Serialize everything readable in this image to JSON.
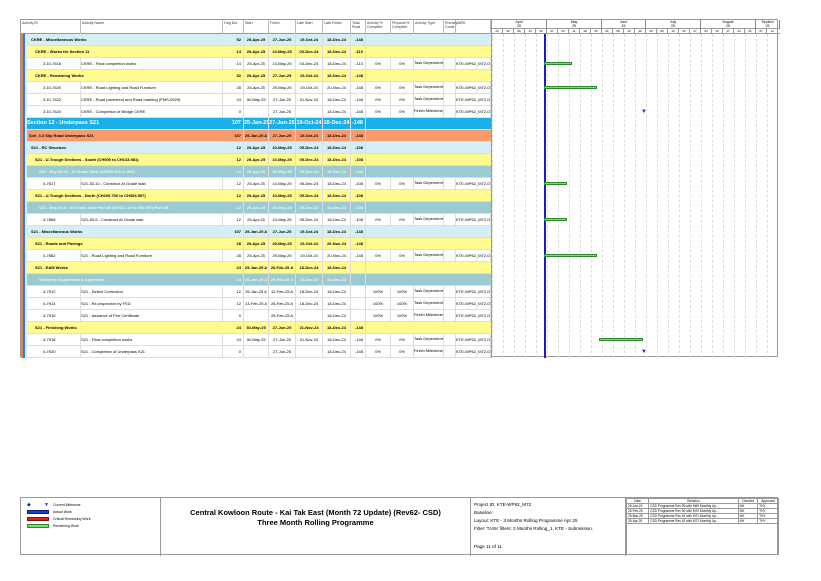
{
  "columns": [
    "Activity ID",
    "Activity Name",
    "Orig Dur",
    "Start",
    "Finish",
    "Late Start",
    "Late Finish",
    "Total Float",
    "Activity % Complete",
    "Physical % Complete",
    "Activity Type",
    "Primary Const",
    "WBS"
  ],
  "timescale": {
    "months": [
      "April",
      "May",
      "June",
      "July",
      "August",
      "Septem"
    ],
    "years": [
      "25",
      "25",
      "25",
      "25",
      "25",
      "25"
    ],
    "weeks": [
      "23",
      "30",
      "06",
      "13",
      "20",
      "27",
      "04",
      "11",
      "18",
      "25",
      "01",
      "08",
      "15",
      "22",
      "29",
      "06",
      "13",
      "20",
      "27",
      "03",
      "10",
      "17",
      "24",
      "31",
      "07",
      "14"
    ]
  },
  "rows": [
    {
      "level": "b",
      "id": "",
      "name": "CKRE - Miscellaneous Works",
      "dur": "52",
      "start": "25-Apr-25",
      "finish": "27-Jun-25",
      "ls": "19-Oct-24",
      "lf": "18-Dec-24",
      "tf": "-148"
    },
    {
      "level": "y",
      "id": "",
      "name": "CKRE - Works for Section 11",
      "dur": "14",
      "start": "25-Apr-25",
      "finish": "13-May-25",
      "ls": "03-Dec-24",
      "lf": "18-Dec-24",
      "tf": "-110"
    },
    {
      "level": "w",
      "id": "3.10-7616",
      "name": "CKRE - Final completion works",
      "dur": "14",
      "start": "25-Apr-25",
      "finish": "13-May-25",
      "ls": "03-Dec-24",
      "lf": "18-Dec-24",
      "tf": "-110",
      "ac": "0%",
      "pc": "0%",
      "type": "Task Dependent",
      "wbs": "KTE-WP62_M72.O",
      "bar": [
        "2025-04-25",
        "2025-05-13"
      ]
    },
    {
      "level": "y",
      "id": "",
      "name": "CKRE - Remaining Works",
      "dur": "52",
      "start": "25-Apr-25",
      "finish": "27-Jun-25",
      "ls": "19-Oct-24",
      "lf": "18-Dec-24",
      "tf": "-148"
    },
    {
      "level": "w",
      "id": "3.10-7620",
      "name": "CKRE - Road Lighting and Road Furniture",
      "dur": "28",
      "start": "25-Apr-25",
      "finish": "29-May-25",
      "ls": "19-Oct-24",
      "lf": "20-Nov-24",
      "tf": "-148",
      "ac": "0%",
      "pc": "0%",
      "type": "Task Dependent",
      "wbs": "KTE-WP62_M72.O",
      "bar": [
        "2025-04-25",
        "2025-05-29"
      ]
    },
    {
      "level": "w",
      "id": "3.10-7622",
      "name": "CKRE - Road pavement and Road marking (PMS-0929)",
      "dur": "24",
      "start": "30-May-25",
      "finish": "27-Jun-25",
      "ls": "21-Nov-24",
      "lf": "18-Dec-24",
      "tf": "-148",
      "ac": "0%",
      "pc": "0%",
      "type": "Task Dependent",
      "wbs": "KTE-WP62_M72.O"
    },
    {
      "level": "w",
      "id": "3.10-7624",
      "name": "CKRE - Completion of Bridge CKRE",
      "dur": "0",
      "start": "",
      "finish": "27-Jun-25",
      "ls": "",
      "lf": "18-Dec-24",
      "tf": "-148",
      "ac": "0%",
      "pc": "0%",
      "type": "Finish Milestone",
      "wbs": "KTE-WP62_M72.O",
      "ms": "2025-06-27"
    },
    {
      "level": "s",
      "id": "",
      "name": "Section 12 - Underpass S21",
      "dur": "107",
      "start": "25-Jan-25 A",
      "finish": "27-Jun-25",
      "ls": "19-Oct-24",
      "lf": "18-Dec-24",
      "tf": "-148"
    },
    {
      "level": "o",
      "id": "",
      "name": "Sch_4.3 Slip Road Underpass S21",
      "dur": "107",
      "start": "25-Jan-25 A",
      "finish": "27-Jun-25",
      "ls": "19-Oct-24",
      "lf": "18-Dec-24",
      "tf": "-148"
    },
    {
      "level": "b",
      "id": "",
      "name": "S21 - RC Structure",
      "dur": "12",
      "start": "25-Apr-25",
      "finish": "10-May-25",
      "ls": "05-Dec-24",
      "lf": "18-Dec-24",
      "tf": "-108"
    },
    {
      "level": "y",
      "id": "",
      "name": "S21 - U-Trough Sections - South (CH000 to CH143.981)",
      "dur": "12",
      "start": "25-Apr-25",
      "finish": "10-May-25",
      "ls": "05-Dec-24",
      "lf": "18-Dec-24",
      "tf": "-108"
    },
    {
      "level": "t",
      "id": "",
      "name": "S21 - Bay 83-10 - At Grade Slab (CH009.376 to 000)",
      "dur": "12",
      "start": "25-Apr-25",
      "finish": "10-May-25",
      "ls": "05-Dec-24",
      "lf": "18-Dec-24",
      "tf": "-108"
    },
    {
      "level": "w",
      "id": "4-7817",
      "name": "S21-83-10 - Construct At Grade slab",
      "dur": "12",
      "start": "25-Apr-25",
      "finish": "10-May-25",
      "ls": "05-Dec-24",
      "lf": "18-Dec-24",
      "tf": "-108",
      "ac": "0%",
      "pc": "0%",
      "type": "Task Dependent",
      "wbs": "KTE-WP62_M72.O",
      "bar": [
        "2025-04-25",
        "2025-05-10"
      ]
    },
    {
      "level": "y",
      "id": "",
      "name": "S21 - U-Trough Sections - North (CH205.700 to CH354.957)",
      "dur": "12",
      "start": "25-Apr-25",
      "finish": "10-May-25",
      "ls": "05-Dec-24",
      "lf": "18-Dec-24",
      "tf": "-108"
    },
    {
      "level": "t",
      "id": "",
      "name": "S21 - Bay 83-9 - At Grade Slab Part 3B (CH321.13 to 354.957) Part 3B",
      "dur": "12",
      "start": "25-Apr-25",
      "finish": "10-May-25",
      "ls": "05-Dec-24",
      "lf": "18-Dec-24",
      "tf": "-108"
    },
    {
      "level": "w",
      "id": "4-7868",
      "name": "S21-83-9 - Construct At Grade slab",
      "dur": "12",
      "start": "25-Apr-25",
      "finish": "10-May-25",
      "ls": "05-Dec-24",
      "lf": "18-Dec-24",
      "tf": "-108",
      "ac": "0%",
      "pc": "0%",
      "type": "Task Dependent",
      "wbs": "KTE-WP62_M72.O",
      "bar": [
        "2025-04-25",
        "2025-05-10"
      ]
    },
    {
      "level": "b",
      "id": "",
      "name": "S21 - Miscellaneous Works",
      "dur": "107",
      "start": "25-Jan-25 A",
      "finish": "27-Jun-25",
      "ls": "19-Oct-24",
      "lf": "18-Dec-24",
      "tf": "-148"
    },
    {
      "level": "y",
      "id": "",
      "name": "S21 - Roads and Pavings",
      "dur": "28",
      "start": "25-Apr-25",
      "finish": "29-May-25",
      "ls": "19-Oct-24",
      "lf": "20-Nov-24",
      "tf": "-148"
    },
    {
      "level": "w",
      "id": "4-7882",
      "name": "S21 - Road Lighting and Road Furniture",
      "dur": "28",
      "start": "25-Apr-25",
      "finish": "29-May-25",
      "ls": "19-Oct-24",
      "lf": "20-Nov-24",
      "tf": "-148",
      "ac": "0%",
      "pc": "0%",
      "type": "Task Dependent",
      "wbs": "KTE-WP62_M72.O",
      "bar": [
        "2025-04-25",
        "2025-05-29"
      ]
    },
    {
      "level": "y",
      "id": "",
      "name": "S21 - E&M Works",
      "dur": "24",
      "start": "25-Jan-25 A",
      "finish": "26-Feb-25 A",
      "ls": "18-Dec-24",
      "lf": "18-Dec-24",
      "tf": ""
    },
    {
      "level": "t",
      "id": "",
      "name": "Statutory Inspections & Approvals",
      "dur": "24",
      "start": "25-Jan-25 A",
      "finish": "26-Feb-25 A",
      "ls": "18-Dec-24",
      "lf": "18-Dec-24",
      "tf": ""
    },
    {
      "level": "w",
      "id": "4-7912",
      "name": "S21 - Defect Correction",
      "dur": "12",
      "start": "25-Jan-25 A",
      "finish": "12-Feb-25 A",
      "ls": "18-Dec-24",
      "lf": "18-Dec-24",
      "tf": "",
      "ac": "100%",
      "pc": "100%",
      "type": "Task Dependent",
      "wbs": "KTE-WP62_M72.O"
    },
    {
      "level": "w",
      "id": "4-7914",
      "name": "S21 - Re-inspection by FSD",
      "dur": "12",
      "start": "13-Feb-25 A",
      "finish": "26-Feb-25 A",
      "ls": "18-Dec-24",
      "lf": "18-Dec-24",
      "tf": "",
      "ac": "100%",
      "pc": "100%",
      "type": "Task Dependent",
      "wbs": "KTE-WP62_M72.O"
    },
    {
      "level": "w",
      "id": "4-7916",
      "name": "S21 - Issuance of Fire Certificate",
      "dur": "0",
      "start": "",
      "finish": "26-Feb-25 A",
      "ls": "",
      "lf": "18-Dec-24",
      "tf": "",
      "ac": "100%",
      "pc": "100%",
      "type": "Finish Milestone",
      "wbs": "KTE-WP62_M72.O"
    },
    {
      "level": "y",
      "id": "",
      "name": "S21 - Finishing Works",
      "dur": "24",
      "start": "30-May-25",
      "finish": "27-Jun-25",
      "ls": "21-Nov-24",
      "lf": "18-Dec-24",
      "tf": "-148"
    },
    {
      "level": "w",
      "id": "4-7918",
      "name": "S21 - Final completion works",
      "dur": "24",
      "start": "30-May-25",
      "finish": "27-Jun-25",
      "ls": "21-Nov-24",
      "lf": "18-Dec-24",
      "tf": "-148",
      "ac": "0%",
      "pc": "0%",
      "type": "Task Dependent",
      "wbs": "KTE-WP62_M72.O",
      "bar": [
        "2025-05-30",
        "2025-06-27"
      ]
    },
    {
      "level": "w",
      "id": "4-7920",
      "name": "S21 - Completion of Underpass S21",
      "dur": "0",
      "start": "",
      "finish": "27-Jun-25",
      "ls": "",
      "lf": "18-Dec-24",
      "tf": "-148",
      "ac": "0%",
      "pc": "0%",
      "type": "Finish Milestone",
      "wbs": "KTE-WP62_M72.O",
      "ms": "2025-06-27"
    }
  ],
  "data_date": "2025-04-25",
  "legend": [
    "Current Milestone",
    "Actual Work",
    "Critical Remaining Work",
    "Remaining Work"
  ],
  "title": {
    "line1": "Central Kowloon Route - Kai Tak East (Month 72 Update) (Rev62- CSD)",
    "line2": "Three Month Rolling Programme"
  },
  "info": {
    "project": "Project ID: KTE-WP62_M72",
    "baseline": "Baseline:",
    "layout": "Layout: KTE - 3 Months Rolling Programme Apr 25",
    "filter": "Filter: TASK filters: 3 Months Rolling_1, KTE - Submission.",
    "page": "Page 11 of 11"
  },
  "revisions": {
    "headers": [
      "Date",
      "Revision",
      "Checked",
      "Approved"
    ],
    "rows": [
      [
        "25-Jan-25",
        "CSD Programme Rev 59 with M69 Monthly Up...",
        "NH",
        "THY"
      ],
      [
        "25-Feb-25",
        "CSD Programme Rev 60 with M70 Monthly Up...",
        "NH",
        "THY"
      ],
      [
        "25-Mar-25",
        "CSD Programme Rev 61 with M71 Monthly Up...",
        "NH",
        "THY"
      ],
      [
        "25-Apr-25",
        "CSD Programme Rev 62 with M72 Monthly Up...",
        "NH",
        "THY"
      ]
    ]
  },
  "colors": {
    "bar": "#7be07b",
    "milestone": "#1a2ad0",
    "data_line": "#1a1ad0",
    "section": "#19b0ea",
    "schedule": "#f79b6c",
    "group": "#fffb8f",
    "wbs": "#d6eef6",
    "subgroup": "#9bcbd1"
  }
}
